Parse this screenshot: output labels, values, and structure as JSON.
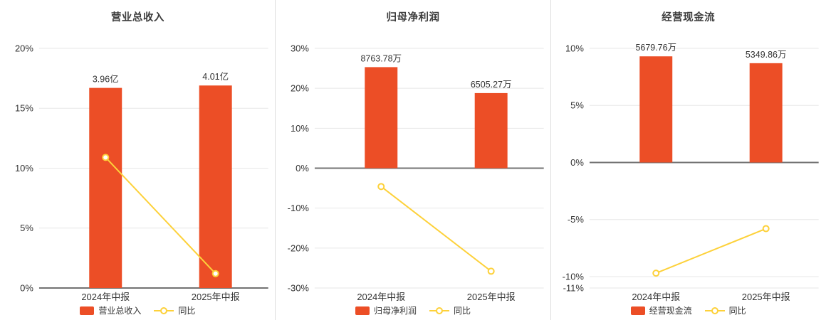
{
  "colors": {
    "background": "#ffffff",
    "bar": "#ec4e26",
    "line": "#fdd13a",
    "marker_fill": "#ffffff",
    "title": "#3c3c3c",
    "text": "#333333",
    "grid": "#e7e7e7",
    "zero_line": "#737373",
    "divider": "#dddddd"
  },
  "chart_data": [
    {
      "type": "bar",
      "overlay": "line",
      "title": "营业总收入",
      "categories": [
        "2024年中报",
        "2025年中报"
      ],
      "bar_series": {
        "name": "营业总收入",
        "value_labels": [
          "3.96亿",
          "4.01亿"
        ],
        "plotted_pct": [
          16.7,
          16.9
        ]
      },
      "line_series": {
        "name": "同比",
        "values_pct": [
          10.9,
          1.2
        ]
      },
      "ylim": [
        0,
        20
      ],
      "yticks": [
        0,
        5,
        10,
        15,
        20
      ],
      "ytick_suffix": "%",
      "grid": true,
      "legend_position": "bottom"
    },
    {
      "type": "bar",
      "overlay": "line",
      "title": "归母净利润",
      "categories": [
        "2024年中报",
        "2025年中报"
      ],
      "bar_series": {
        "name": "归母净利润",
        "value_labels": [
          "8763.78万",
          "6505.27万"
        ],
        "plotted_pct": [
          25.3,
          18.8
        ]
      },
      "line_series": {
        "name": "同比",
        "values_pct": [
          -4.6,
          -25.8
        ]
      },
      "ylim": [
        -30,
        30
      ],
      "yticks": [
        -30,
        -20,
        -10,
        0,
        10,
        20,
        30
      ],
      "ytick_suffix": "%",
      "grid": true,
      "legend_position": "bottom"
    },
    {
      "type": "bar",
      "overlay": "line",
      "title": "经营现金流",
      "categories": [
        "2024年中报",
        "2025年中报"
      ],
      "bar_series": {
        "name": "经营现金流",
        "value_labels": [
          "5679.76万",
          "5349.86万"
        ],
        "plotted_pct": [
          9.3,
          8.7
        ]
      },
      "line_series": {
        "name": "同比",
        "values_pct": [
          -9.7,
          -5.8
        ]
      },
      "ylim": [
        -11,
        10
      ],
      "yticks": [
        10,
        5,
        0,
        -5,
        -10,
        -11
      ],
      "ytick_suffix": "%",
      "grid": true,
      "legend_position": "bottom"
    }
  ]
}
